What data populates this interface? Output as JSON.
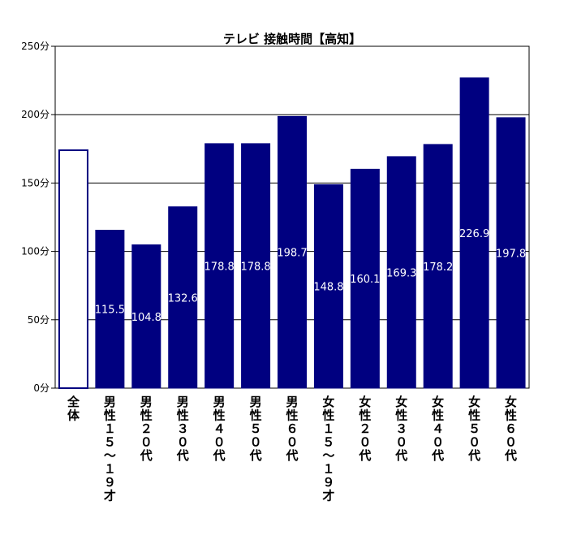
{
  "chart_data": {
    "type": "bar",
    "title": "テレビ 接触時間【高知】",
    "ylim": [
      0,
      250
    ],
    "yticks": [
      0,
      50,
      100,
      150,
      200,
      250
    ],
    "ytick_labels": [
      "0分",
      "50分",
      "100分",
      "150分",
      "200分",
      "250分"
    ],
    "grid": true,
    "categories": [
      "全体",
      "男性15~19才",
      "男性20代",
      "男性30代",
      "男性40代",
      "男性50代",
      "男性60代",
      "女性15~19才",
      "女性20代",
      "女性30代",
      "女性40代",
      "女性50代",
      "女性60代"
    ],
    "category_labels": [
      "全体",
      "男性１５~１９才",
      "男性２０代",
      "男性３０代",
      "男性４０代",
      "男性５０代",
      "男性６０代",
      "女性１５~１９才",
      "女性２０代",
      "女性３０代",
      "女性４０代",
      "女性５０代",
      "女性６０代"
    ],
    "values": [
      174,
      115.5,
      104.8,
      132.6,
      178.8,
      178.8,
      198.7,
      148.8,
      160.1,
      169.3,
      178.2,
      226.9,
      197.8
    ],
    "data_labels": [
      "",
      "115.5",
      "104.8",
      "132.6",
      "178.8",
      "178.8",
      "198.7",
      "148.8",
      "160.1",
      "169.3",
      "178.2",
      "226.9",
      "197.8"
    ],
    "colors": {
      "bar": "#000080",
      "highlight_fill": "#ffffff",
      "highlight_stroke": "#000080"
    }
  }
}
